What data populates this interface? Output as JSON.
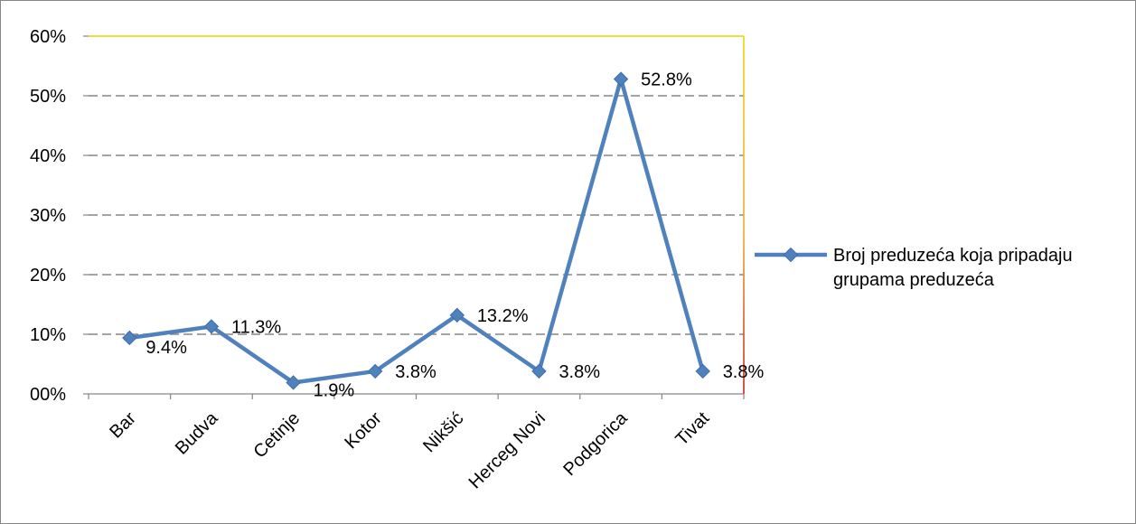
{
  "chart_data": {
    "type": "line",
    "categories": [
      "Bar",
      "Budva",
      "Cetinje",
      "Kotor",
      "Nikšić",
      "Herceg Novi",
      "Podgorica",
      "Tivat"
    ],
    "series": [
      {
        "name": "Broj preduzeća koja pripadaju grupama preduzeća",
        "values": [
          9.4,
          11.3,
          1.9,
          3.8,
          13.2,
          3.8,
          52.8,
          3.8
        ],
        "data_labels": [
          "9.4%",
          "11.3%",
          "1.9%",
          "3.8%",
          "13.2%",
          "3.8%",
          "52.8%",
          "3.8%"
        ]
      }
    ],
    "y_ticks": [
      "00%",
      "10%",
      "20%",
      "30%",
      "40%",
      "50%",
      "60%"
    ],
    "ylim": [
      0,
      60
    ],
    "grid": "horizontal dashed",
    "legend_position": "right",
    "legend_lines": [
      "Broj preduzeća koja pripadaju",
      "grupama preduzeća"
    ],
    "colors": {
      "series": "#4F81BD",
      "grid": "#868686",
      "axis": "#868686"
    }
  }
}
